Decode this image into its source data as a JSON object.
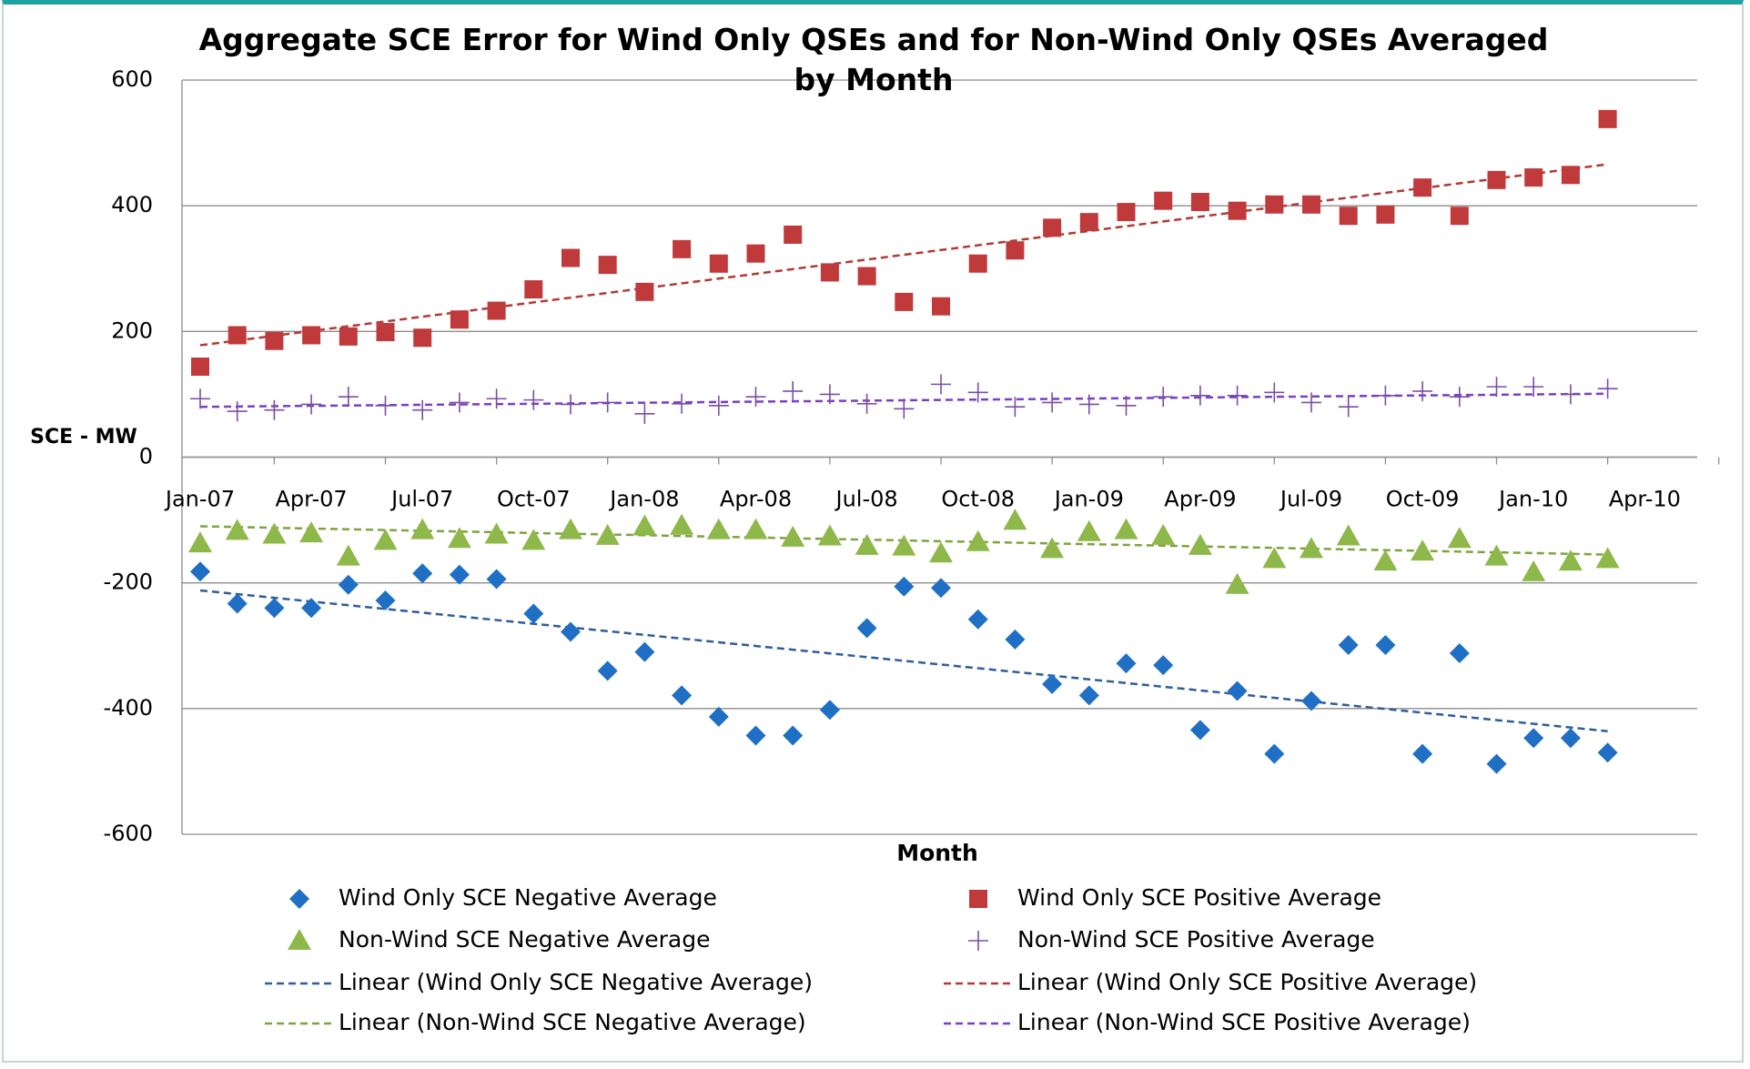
{
  "chart_data": {
    "type": "scatter",
    "title": "Aggregate SCE Error for Wind Only QSEs and for Non-Wind Only QSEs Averaged by Month",
    "x_label": "Month",
    "y_label": "SCE - MW",
    "categories": [
      "Jan-07",
      null,
      null,
      "Apr-07",
      null,
      null,
      "Jul-07",
      null,
      null,
      "Oct-07",
      null,
      null,
      "Jan-08",
      null,
      null,
      "Apr-08",
      null,
      null,
      "Jul-08",
      null,
      null,
      "Oct-08",
      null,
      null,
      "Jan-09",
      null,
      null,
      "Apr-09",
      null,
      null,
      "Jul-09",
      null,
      null,
      "Oct-09",
      null,
      null,
      "Jan-10",
      null,
      null,
      "Apr-10"
    ],
    "ylim": [
      -600,
      600
    ],
    "yticks": [
      -600,
      -400,
      -200,
      0,
      200,
      400,
      600
    ],
    "grid": true,
    "series": [
      {
        "name": "Wind Only SCE Negative Average",
        "color": "#1f6fc5",
        "marker": "diamond",
        "values": [
          -182,
          -233,
          -240,
          -240,
          -203,
          -228,
          -185,
          -187,
          -194,
          -249,
          -278,
          -340,
          -310,
          -379,
          -413,
          -443,
          -443,
          -402,
          -272,
          -206,
          -208,
          -258,
          -290,
          -361,
          -379,
          -328,
          -331,
          -434,
          -372,
          -472,
          -388,
          -299,
          -299,
          -472,
          -312,
          -488,
          -447,
          -447,
          -470,
          null
        ]
      },
      {
        "name": "Wind Only SCE Positive Average",
        "color": "#c0393b",
        "marker": "square",
        "values": [
          144,
          194,
          185,
          194,
          192,
          199,
          190,
          219,
          233,
          267,
          317,
          306,
          263,
          331,
          308,
          324,
          354,
          294,
          288,
          247,
          240,
          308,
          329,
          365,
          374,
          390,
          408,
          406,
          392,
          402,
          402,
          384,
          386,
          429,
          384,
          441,
          445,
          449,
          538,
          null
        ]
      },
      {
        "name": "Non-Wind SCE Negative Average",
        "color": "#8fb84a",
        "marker": "triangle",
        "values": [
          -137,
          -117,
          -123,
          -121,
          -158,
          -133,
          -116,
          -130,
          -123,
          -133,
          -116,
          -125,
          -110,
          -109,
          -116,
          -116,
          -128,
          -126,
          -141,
          -142,
          -153,
          -135,
          -101,
          -146,
          -119,
          -116,
          -125,
          -141,
          -203,
          -162,
          -146,
          -126,
          -166,
          -150,
          -130,
          -158,
          -183,
          -166,
          -162,
          null
        ]
      },
      {
        "name": "Non-Wind SCE Positive Average",
        "color": "#7b4fa3",
        "marker": "plus",
        "values": [
          93,
          73,
          75,
          84,
          96,
          82,
          75,
          87,
          93,
          91,
          84,
          87,
          69,
          85,
          82,
          96,
          105,
          100,
          85,
          77,
          116,
          103,
          80,
          87,
          84,
          82,
          96,
          98,
          98,
          103,
          87,
          80,
          98,
          105,
          96,
          112,
          112,
          100,
          109,
          null
        ]
      }
    ],
    "trendlines": [
      {
        "name": "Linear (Wind Only SCE Negative Average)",
        "color": "#2e5d9a",
        "values": [
          -212,
          -436
        ]
      },
      {
        "name": "Linear (Wind Only SCE Positive Average)",
        "color": "#b03a36",
        "values": [
          178,
          466
        ]
      },
      {
        "name": "Linear (Non-Wind SCE Negative Average)",
        "color": "#7fa33e",
        "values": [
          -110,
          -155
        ]
      },
      {
        "name": "Linear (Non-Wind SCE Positive Average)",
        "color": "#7a3fc4",
        "values": [
          80,
          101
        ]
      }
    ]
  }
}
